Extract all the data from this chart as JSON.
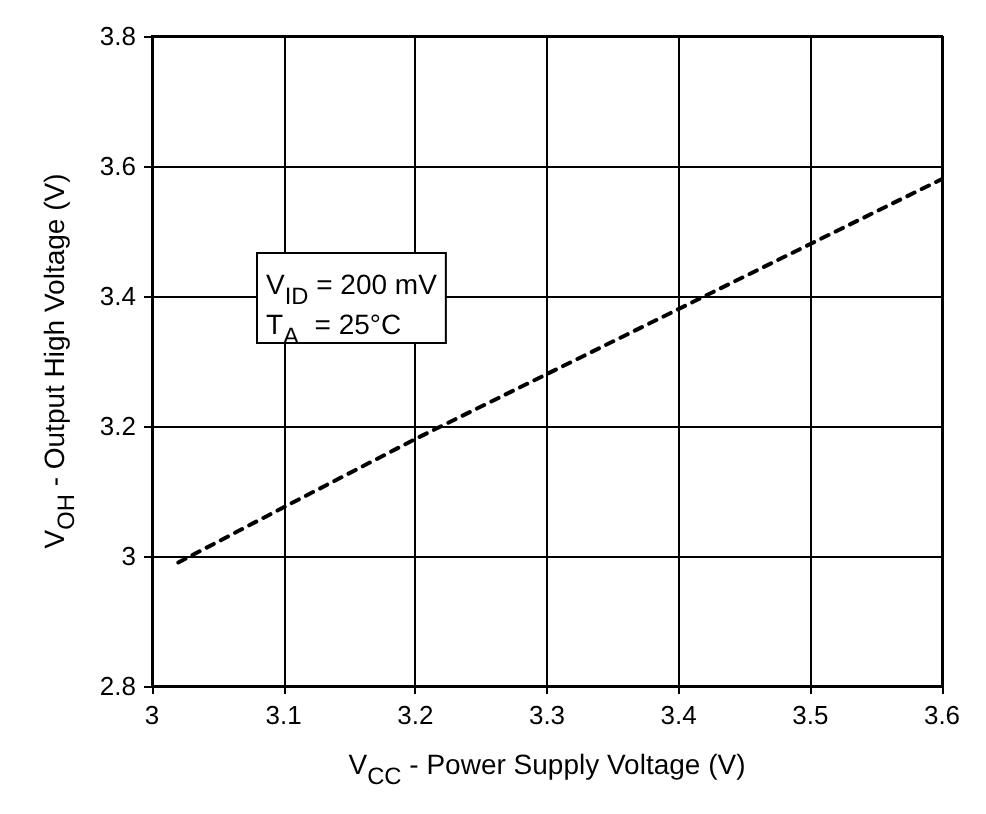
{
  "chart_data": {
    "type": "line",
    "xlabel": "V$_{CC}$ - Power Supply Voltage (V)",
    "ylabel": "V$_{OH}$ - Output High Voltage (V)",
    "annotations": [
      "V$_{ID}$ = 200 mV",
      "T$_{A}$  = 25°C"
    ],
    "x": [
      3.02,
      3.1,
      3.2,
      3.3,
      3.4,
      3.5,
      3.6
    ],
    "series": [
      {
        "color": "#000000",
        "values": [
          2.99,
          3.075,
          3.18,
          3.28,
          3.38,
          3.48,
          3.58
        ]
      }
    ],
    "xlim": [
      3,
      3.6
    ],
    "xticks": [
      3,
      3.1,
      3.2,
      3.3,
      3.4,
      3.5,
      3.6
    ],
    "ylim": [
      2.8,
      3.8
    ],
    "yticks": [
      2.8,
      3.0,
      3.2,
      3.4,
      3.6,
      3.8
    ],
    "grid": true,
    "marker": "none",
    "line_style": "dashed"
  }
}
